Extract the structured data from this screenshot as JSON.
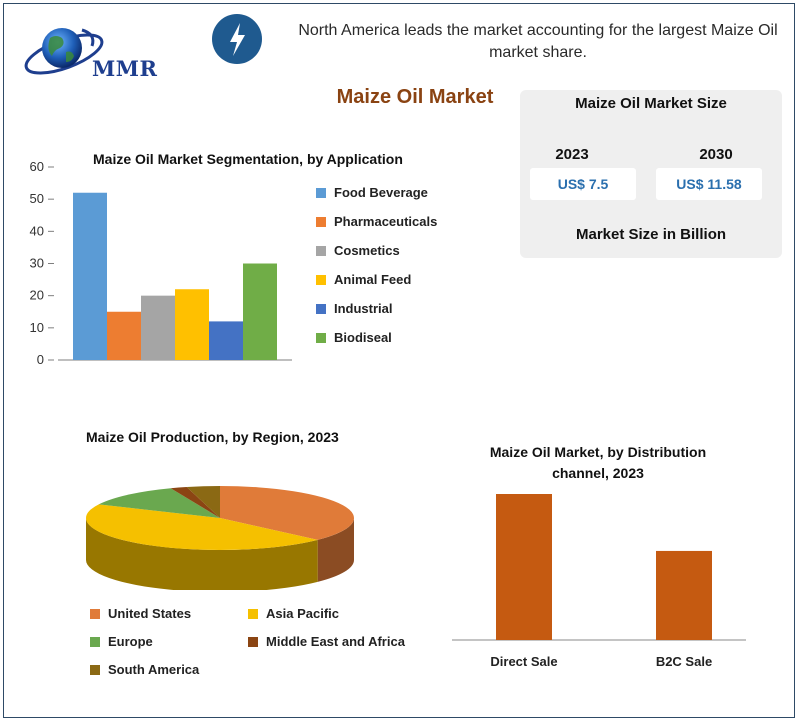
{
  "brand": {
    "name": "MMR"
  },
  "headline": "North America leads the market accounting for the largest Maize Oil market share.",
  "main_title": "Maize Oil Market",
  "market_size": {
    "title": "Maize Oil Market Size",
    "years": [
      {
        "year": "2023",
        "value": "US$ 7.5"
      },
      {
        "year": "2030",
        "value": "US$ 11.58"
      }
    ],
    "unit_label": "Market Size in Billion"
  },
  "colors": {
    "accent_title": "#8a4312",
    "brand_blue": "#1e3e8e",
    "value_blue": "#2a6fae"
  },
  "chart_data": [
    {
      "type": "bar",
      "title": "Maize Oil Market Segmentation, by Application",
      "categories": [
        "Food Beverage",
        "Pharmaceuticals",
        "Cosmetics",
        "Animal Feed",
        "Industrial",
        "Biodiseal"
      ],
      "values": [
        52,
        15,
        20,
        22,
        12,
        30
      ],
      "colors": [
        "#5b9bd5",
        "#ed7d31",
        "#a5a5a5",
        "#ffc000",
        "#4472c4",
        "#70ad47"
      ],
      "ylim": [
        0,
        60
      ],
      "yticks": [
        "0",
        "10",
        "20",
        "30",
        "40",
        "50",
        "60"
      ],
      "legend_position": "right",
      "grid": false
    },
    {
      "type": "pie",
      "title": "Maize Oil Production, by Region, 2023",
      "categories": [
        "United States",
        "Asia Pacific",
        "Europe",
        "Middle East and Africa",
        "South America"
      ],
      "values": [
        37,
        45,
        12,
        2,
        4
      ],
      "colors": [
        "#e07b39",
        "#f5c000",
        "#6aa84f",
        "#8b4513",
        "#8b6914"
      ],
      "legend_position": "bottom"
    },
    {
      "type": "bar",
      "title": "Maize Oil Market, by Distribution channel, 2023",
      "title_lines": [
        "Maize Oil Market, by Distribution",
        "channel, 2023"
      ],
      "categories": [
        "Direct Sale",
        "B2C Sale"
      ],
      "values": [
        100,
        61
      ],
      "color": "#c55a11",
      "ylim": [
        0,
        100
      ]
    }
  ]
}
